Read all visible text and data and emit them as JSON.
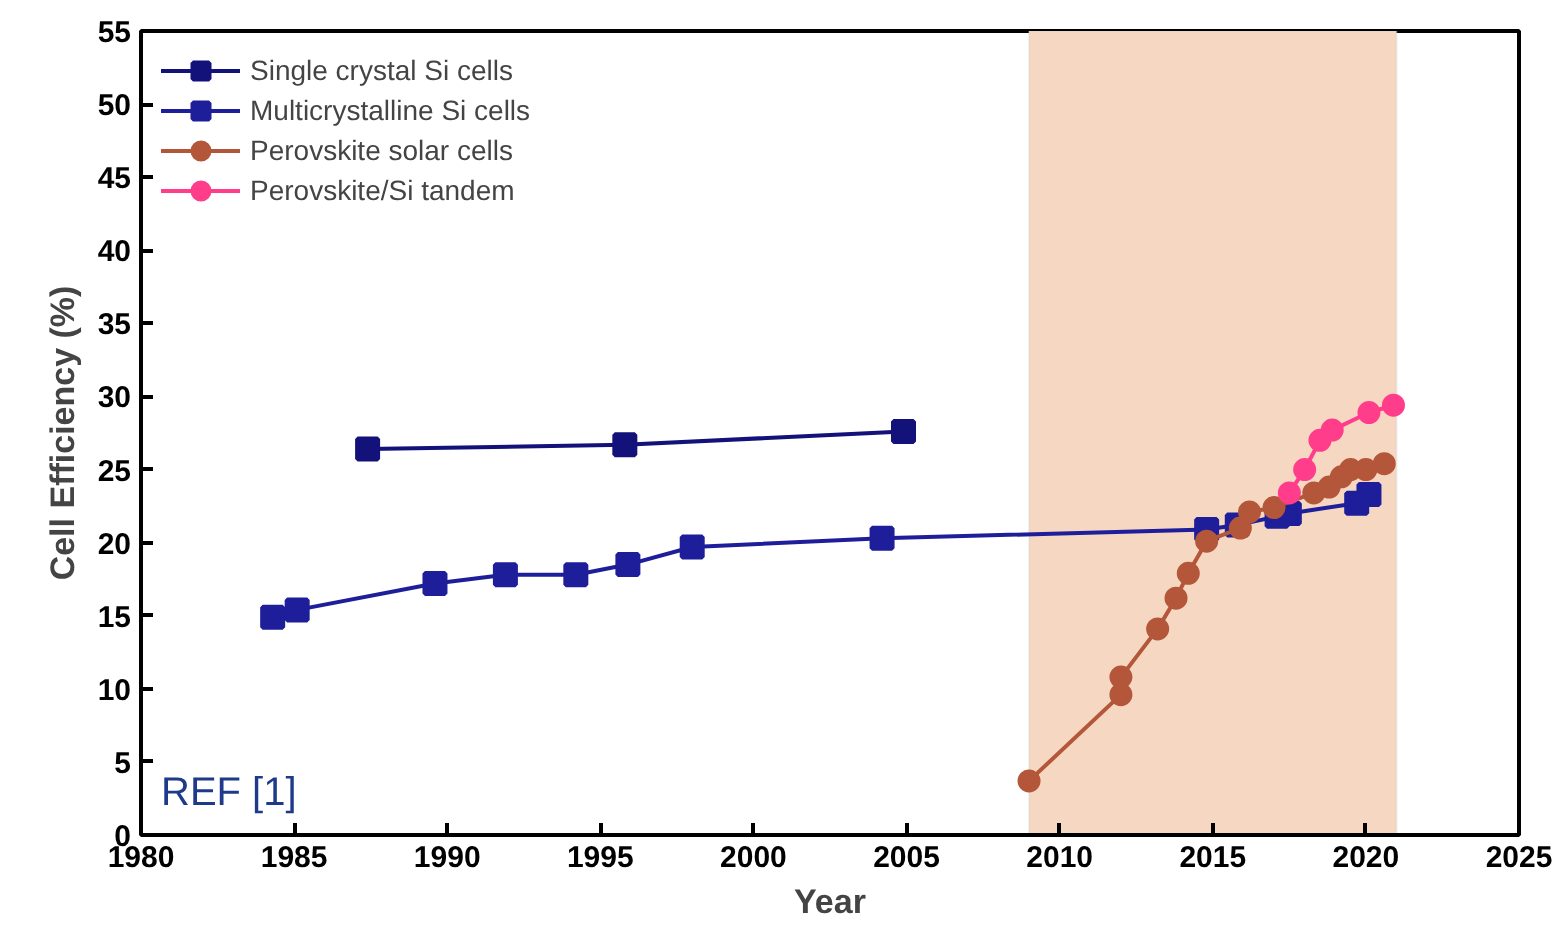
{
  "chart_data": {
    "type": "line",
    "xlabel": "Year",
    "ylabel": "Cell Efficiency (%)",
    "xlim": [
      1980,
      2025
    ],
    "xticks": [
      1980,
      1985,
      1990,
      1995,
      2000,
      2005,
      2010,
      2015,
      2020,
      2025
    ],
    "ylim": [
      0,
      55
    ],
    "yticks": [
      0,
      5,
      10,
      15,
      20,
      25,
      30,
      35,
      40,
      45,
      50,
      55
    ],
    "grid": false,
    "legend": "top left",
    "line_style": "solid",
    "annotations": [
      "REF [1]"
    ],
    "bands": [
      {
        "axis": "x",
        "from": 2009,
        "to": 2021,
        "color": "#f6d8c2"
      }
    ],
    "series": [
      {
        "name": "Single crystal Si cells",
        "color": "#12127a",
        "marker": "square",
        "x": [
          1987.4,
          1995.8,
          2004.9
        ],
        "values": [
          26.4,
          26.7,
          27.6
        ]
      },
      {
        "name": "Multicrystalline Si cells",
        "color": "#1e1e9a",
        "marker": "square",
        "x": [
          1984.3,
          1985.1,
          1989.6,
          1991.9,
          1994.2,
          1995.9,
          1998.0,
          2004.2,
          2014.8,
          2015.8,
          2017.1,
          2017.5,
          2019.7,
          2020.1
        ],
        "values": [
          14.9,
          15.4,
          17.2,
          17.8,
          17.8,
          18.5,
          19.7,
          20.3,
          20.9,
          21.2,
          21.8,
          22.0,
          22.7,
          23.3
        ]
      },
      {
        "name": "Perovskite solar cells",
        "color": "#b3563a",
        "marker": "circle",
        "x": [
          2009.0,
          2012.0,
          2012.0,
          2013.2,
          2013.8,
          2014.2,
          2014.8,
          2015.9,
          2016.2,
          2017.0,
          2018.3,
          2018.8,
          2019.2,
          2019.5,
          2020.0,
          2020.6
        ],
        "values": [
          3.7,
          9.6,
          10.8,
          14.1,
          16.2,
          17.9,
          20.1,
          21.0,
          22.1,
          22.4,
          23.4,
          23.8,
          24.5,
          25.0,
          25.0,
          25.4
        ]
      },
      {
        "name": "Perovskite/Si tandem",
        "color": "#ff3d8b",
        "marker": "circle",
        "x": [
          2017.5,
          2018.0,
          2018.5,
          2018.9,
          2020.1,
          2020.9
        ],
        "values": [
          23.4,
          25.0,
          27.0,
          27.7,
          28.9,
          29.4
        ]
      }
    ]
  }
}
